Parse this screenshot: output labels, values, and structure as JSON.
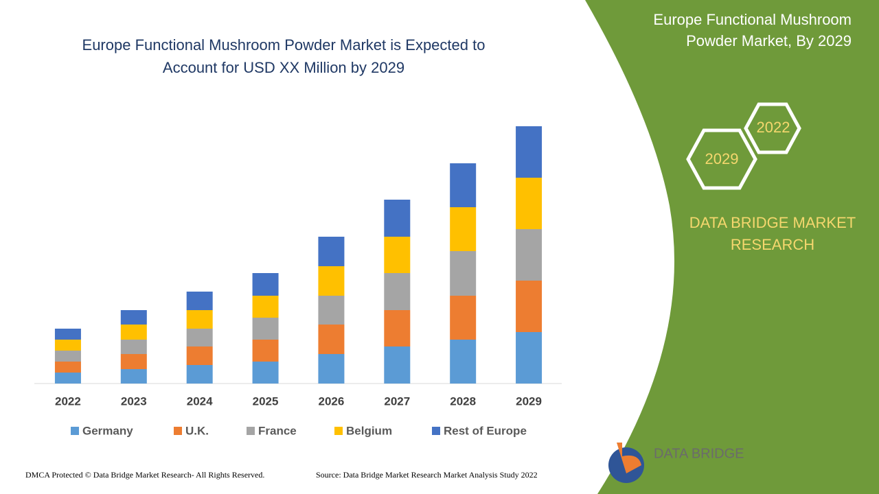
{
  "chart_data": {
    "type": "stacked_bar",
    "title": [
      "Europe Functional Mushroom Powder Market is Expected to",
      "Account for USD XX Million by 2029"
    ],
    "categories": [
      "2022",
      "2023",
      "2024",
      "2025",
      "2026",
      "2027",
      "2028",
      "2029"
    ],
    "series": [
      {
        "name": "Germany",
        "color": "#5b9bd5",
        "values": [
          16,
          21,
          27,
          32,
          43,
          54,
          64,
          75
        ]
      },
      {
        "name": "U.K.",
        "color": "#ed7d31",
        "values": [
          16,
          22,
          27,
          32,
          43,
          53,
          64,
          75
        ]
      },
      {
        "name": "France",
        "color": "#a5a5a5",
        "values": [
          16,
          21,
          26,
          32,
          42,
          54,
          65,
          75
        ]
      },
      {
        "name": "Belgium",
        "color": "#ffc000",
        "values": [
          16,
          22,
          27,
          32,
          43,
          53,
          64,
          75
        ]
      },
      {
        "name": "Rest of Europe",
        "color": "#4472c4",
        "values": [
          16,
          21,
          27,
          33,
          43,
          54,
          64,
          75
        ]
      }
    ],
    "ylim": [
      0,
      400
    ],
    "legend": "bottom"
  },
  "panel": {
    "title": [
      "Europe Functional Mushroom",
      "Powder Market, By 2029"
    ],
    "hex_front": "2029",
    "hex_back": "2022",
    "brand": [
      "DATA BRIDGE MARKET",
      "RESEARCH"
    ],
    "logo": "DATA BRIDGE"
  },
  "footer": {
    "left": "DMCA Protected © Data Bridge Market Research- All Rights Reserved.",
    "right": "Source: Data Bridge Market Research Market Analysis Study 2022"
  }
}
